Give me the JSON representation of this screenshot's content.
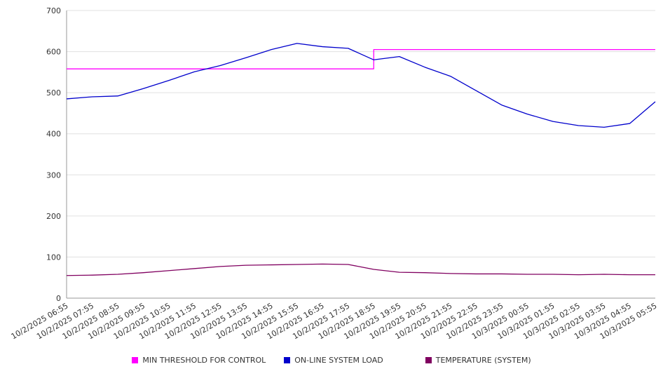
{
  "chart_data": {
    "type": "line",
    "categories": [
      "10/2/2025 06:55",
      "10/2/2025 07:55",
      "10/2/2025 08:55",
      "10/2/2025 09:55",
      "10/2/2025 10:55",
      "10/2/2025 11:55",
      "10/2/2025 12:55",
      "10/2/2025 13:55",
      "10/2/2025 14:55",
      "10/2/2025 15:55",
      "10/2/2025 16:55",
      "10/2/2025 17:55",
      "10/2/2025 18:55",
      "10/2/2025 19:55",
      "10/2/2025 20:55",
      "10/2/2025 21:55",
      "10/2/2025 22:55",
      "10/2/2025 23:55",
      "10/3/2025 00:55",
      "10/3/2025 01:55",
      "10/3/2025 02:55",
      "10/3/2025 03:55",
      "10/3/2025 04:55",
      "10/3/2025 05:55"
    ],
    "series": [
      {
        "name": "MIN THRESHOLD FOR CONTROL",
        "color": "#ff00ff",
        "step": true,
        "values": [
          558,
          558,
          558,
          558,
          558,
          558,
          558,
          558,
          558,
          558,
          558,
          558,
          605,
          605,
          605,
          605,
          605,
          605,
          605,
          605,
          605,
          605,
          605,
          605
        ]
      },
      {
        "name": "ON-LINE SYSTEM LOAD",
        "color": "#0000cc",
        "step": false,
        "values": [
          485,
          490,
          492,
          510,
          530,
          551,
          566,
          585,
          605,
          620,
          612,
          608,
          580,
          588,
          562,
          540,
          505,
          470,
          448,
          430,
          420,
          416,
          425,
          478
        ]
      },
      {
        "name": "TEMPERATURE (SYSTEM)",
        "color": "#800060",
        "step": false,
        "values": [
          55,
          56,
          58,
          62,
          67,
          72,
          77,
          80,
          81,
          82,
          83,
          82,
          70,
          63,
          62,
          60,
          59,
          59,
          58,
          58,
          57,
          58,
          57,
          57
        ]
      }
    ],
    "ylim": [
      0,
      700
    ],
    "yticks": [
      0,
      100,
      200,
      300,
      400,
      500,
      600,
      700
    ],
    "xlabel": "",
    "ylabel": "",
    "title": "",
    "grid": "horizontal",
    "legend_position": "bottom",
    "axis_color": "#999999",
    "grid_color": "#e0e0e0",
    "tick_text_color": "#333333"
  }
}
